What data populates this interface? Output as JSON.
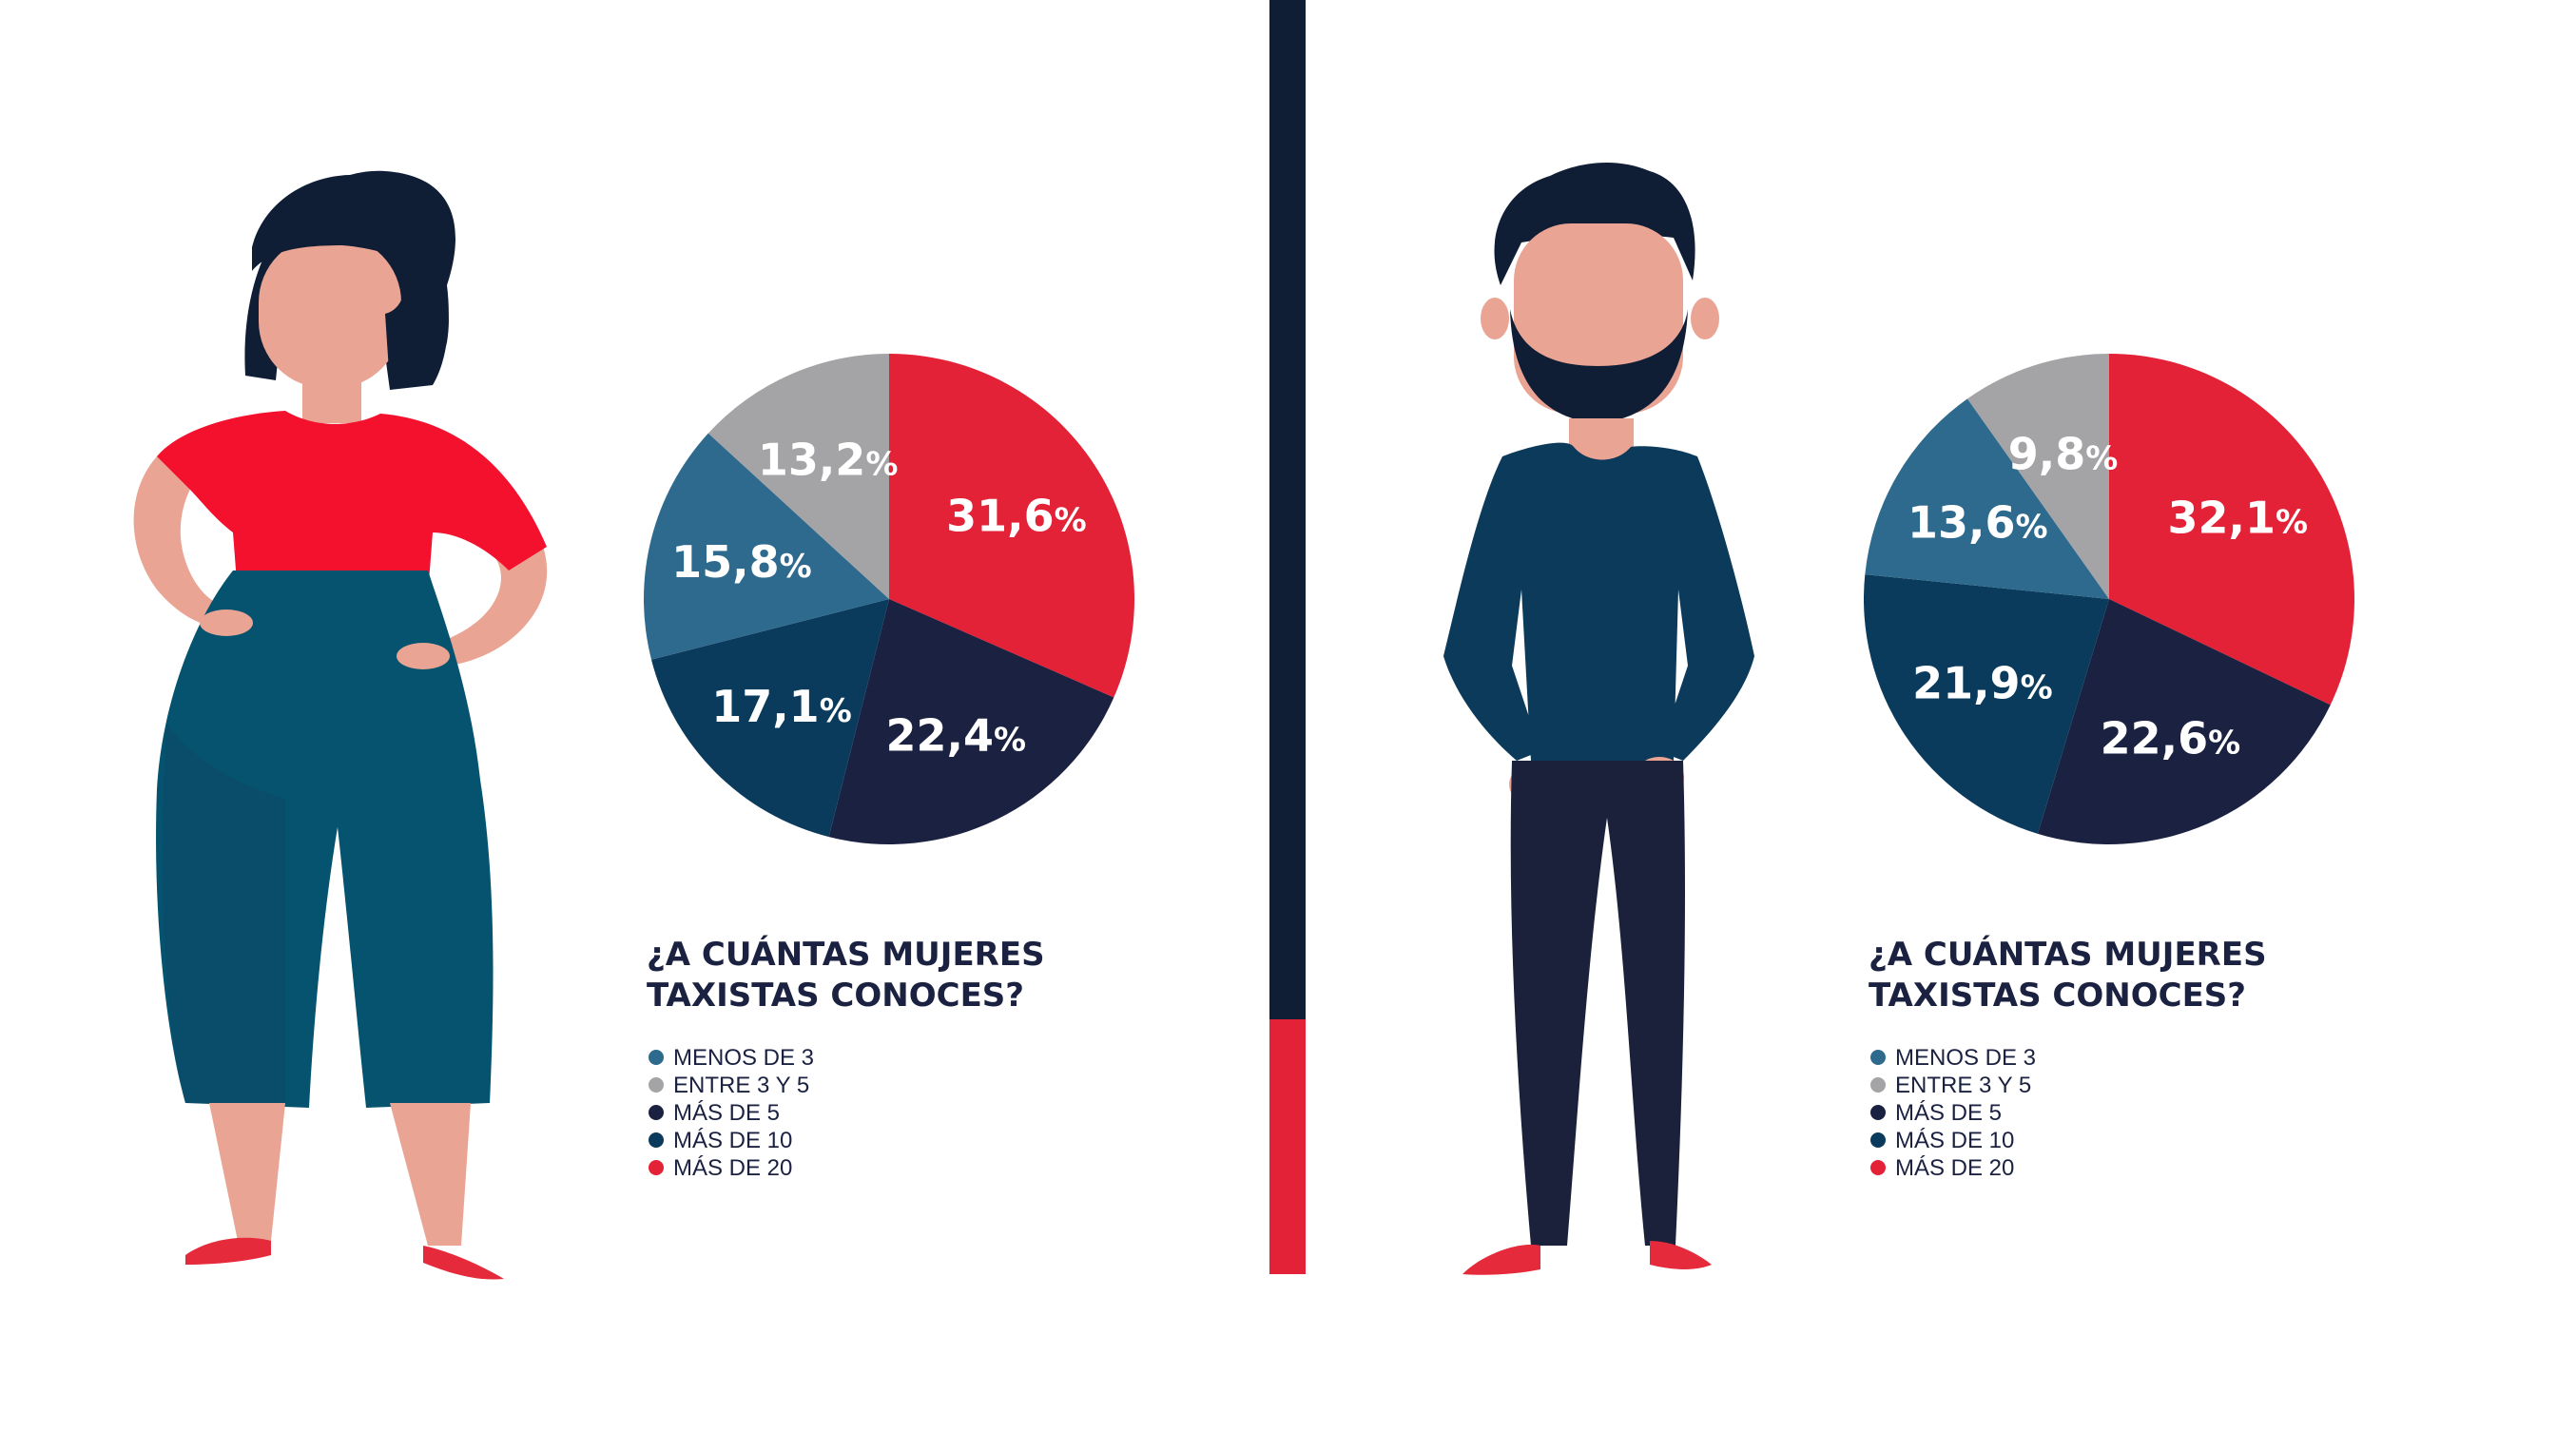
{
  "colors": {
    "background": "#ffffff",
    "menos_de_3": "#2e6a8e",
    "entre_3_y_5": "#a4a3a6",
    "mas_de_5": "#1b2140",
    "mas_de_10": "#0b3b5c",
    "mas_de_20": "#e32237",
    "skin": "#e9a494",
    "hair": "#0f1d35",
    "woman_top": "#f4112e",
    "woman_pants": "#05536e",
    "man_shirt": "#0c3a5a",
    "man_pants": "#1b213a",
    "shoes": "#e42a3b"
  },
  "chart_data": [
    {
      "type": "pie",
      "question": [
        "¿A CUÁNTAS MUJERES",
        "TAXISTAS CONOCES?"
      ],
      "slices": [
        {
          "label": "MÁS DE 20",
          "value": 31.6,
          "display": "31,6",
          "color": "#e32237"
        },
        {
          "label": "MÁS DE 5",
          "value": 22.4,
          "display": "22,4",
          "color": "#1b2140"
        },
        {
          "label": "MÁS DE 10",
          "value": 17.1,
          "display": "17,1",
          "color": "#0b3b5c"
        },
        {
          "label": "MENOS DE 3",
          "value": 15.8,
          "display": "15,8",
          "color": "#2e6a8e"
        },
        {
          "label": "ENTRE 3 Y 5",
          "value": 13.2,
          "display": "13,2",
          "color": "#a4a3a6"
        }
      ],
      "legend": [
        {
          "label": "MENOS DE 3",
          "color": "#2e6a8e"
        },
        {
          "label": "ENTRE 3 Y 5",
          "color": "#a4a3a6"
        },
        {
          "label": "MÁS DE 5",
          "color": "#1b2140"
        },
        {
          "label": "MÁS DE 10",
          "color": "#0b3b5c"
        },
        {
          "label": "MÁS DE 20",
          "color": "#e32237"
        }
      ],
      "percent_symbol": "%"
    },
    {
      "type": "pie",
      "question": [
        "¿A CUÁNTAS MUJERES",
        "TAXISTAS CONOCES?"
      ],
      "slices": [
        {
          "label": "MÁS DE 20",
          "value": 32.1,
          "display": "32,1",
          "color": "#e32237"
        },
        {
          "label": "MÁS DE 5",
          "value": 22.6,
          "display": "22,6",
          "color": "#1b2140"
        },
        {
          "label": "MÁS DE 10",
          "value": 21.9,
          "display": "21,9",
          "color": "#0b3b5c"
        },
        {
          "label": "MENOS DE 3",
          "value": 13.6,
          "display": "13,6",
          "color": "#2e6a8e"
        },
        {
          "label": "ENTRE 3 Y 5",
          "value": 9.8,
          "display": "9,8",
          "color": "#a4a3a6"
        }
      ],
      "legend": [
        {
          "label": "MENOS DE 3",
          "color": "#2e6a8e"
        },
        {
          "label": "ENTRE 3 Y 5",
          "color": "#a4a3a6"
        },
        {
          "label": "MÁS DE 5",
          "color": "#1b2140"
        },
        {
          "label": "MÁS DE 10",
          "color": "#0b3b5c"
        },
        {
          "label": "MÁS DE 20",
          "color": "#e32237"
        }
      ],
      "percent_symbol": "%"
    }
  ],
  "divider": {
    "top_color": "#0f1d35",
    "bottom_color": "#e32237",
    "split_fraction": 0.8
  }
}
